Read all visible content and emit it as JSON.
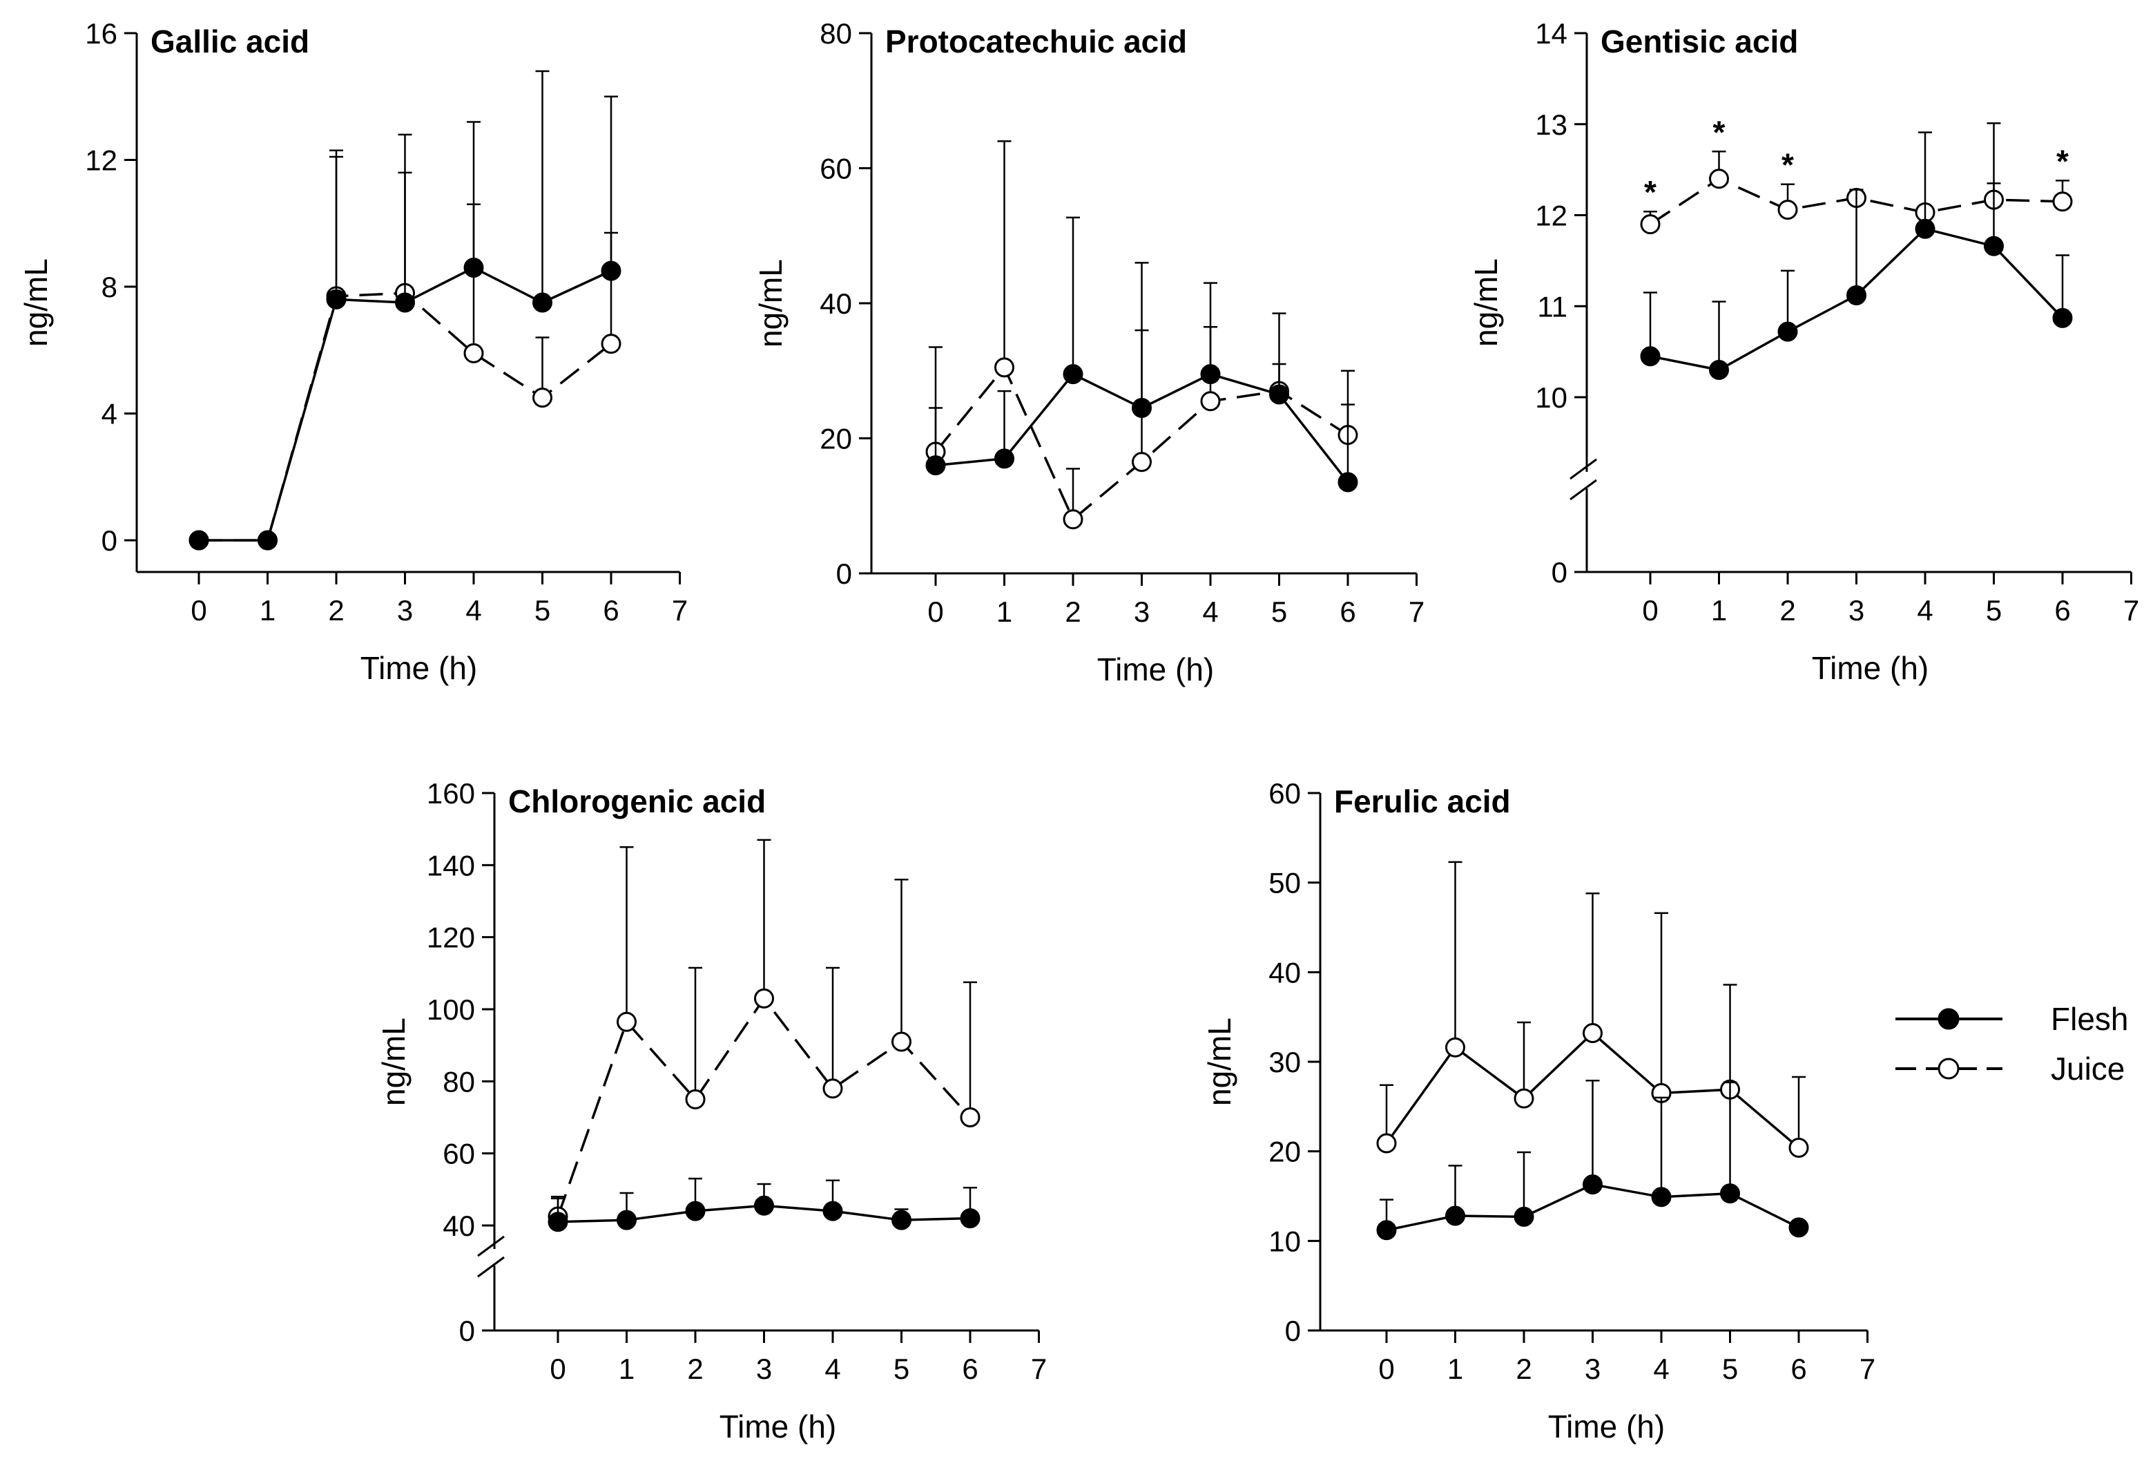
{
  "figure": {
    "legend": [
      {
        "name": "Flesh",
        "marker": "filled-circle",
        "line": "solid"
      },
      {
        "name": "Juice",
        "marker": "open-circle",
        "line": "dashed"
      }
    ],
    "colors": {
      "line": "#000000",
      "open_fill": "#ffffff",
      "filled": "#000000"
    }
  },
  "chart_data": [
    {
      "type": "line",
      "title": "Gallic acid",
      "xlabel": "Time (h)",
      "ylabel": "ng/mL",
      "xlim": [
        -1,
        7
      ],
      "xticks": [
        0,
        1,
        2,
        3,
        4,
        5,
        6,
        7
      ],
      "ylim": [
        -1,
        16
      ],
      "yticks": [
        0,
        4,
        8,
        12,
        16
      ],
      "x": [
        0,
        1,
        2,
        3,
        4,
        5,
        6
      ],
      "series": [
        {
          "name": "Flesh",
          "values": [
            0,
            0,
            7.6,
            7.5,
            8.6,
            7.5,
            8.5
          ],
          "errors": [
            0,
            0,
            4.5,
            4.1,
            2.0,
            7.3,
            1.2
          ]
        },
        {
          "name": "Juice",
          "values": [
            0,
            0,
            7.7,
            7.8,
            5.9,
            4.5,
            6.2
          ],
          "errors": [
            0,
            0,
            4.6,
            5.0,
            7.3,
            1.9,
            7.8
          ]
        }
      ]
    },
    {
      "type": "line",
      "title": "Protocatechuic acid",
      "xlabel": "Time (h)",
      "ylabel": "ng/mL",
      "xlim": [
        -1,
        7
      ],
      "xticks": [
        0,
        1,
        2,
        3,
        4,
        5,
        6,
        7
      ],
      "ylim": [
        0,
        80
      ],
      "yticks": [
        0,
        20,
        40,
        60,
        80
      ],
      "x": [
        0,
        1,
        2,
        3,
        4,
        5,
        6
      ],
      "series": [
        {
          "name": "Flesh",
          "values": [
            16,
            17,
            29.5,
            24.5,
            29.5,
            26.5,
            13.5
          ],
          "errors": [
            8.5,
            10,
            23.2,
            11.5,
            13.5,
            4.5,
            11.5
          ]
        },
        {
          "name": "Juice",
          "values": [
            18,
            30.5,
            8,
            16.5,
            25.5,
            27,
            20.5
          ],
          "errors": [
            15.5,
            33.5,
            7.5,
            29.5,
            11,
            11.5,
            9.5
          ]
        }
      ]
    },
    {
      "type": "line",
      "title": "Gentisic acid",
      "xlabel": "Time (h)",
      "ylabel": "ng/mL",
      "xlim": [
        -1,
        7
      ],
      "xticks": [
        0,
        1,
        2,
        3,
        4,
        5,
        6,
        7
      ],
      "yticks": [
        0,
        10,
        11,
        12,
        13,
        14
      ],
      "axis_break": {
        "lower": 0,
        "upper": 10
      },
      "significance": [
        0,
        1,
        2,
        6
      ],
      "annotation": "*",
      "x": [
        0,
        1,
        2,
        3,
        4,
        5,
        6
      ],
      "series": [
        {
          "name": "Flesh",
          "values": [
            10.45,
            10.3,
            10.72,
            11.12,
            11.85,
            11.66,
            10.87
          ],
          "errors": [
            0.7,
            0.75,
            0.67,
            1.16,
            1.06,
            0.69,
            0.69
          ]
        },
        {
          "name": "Juice",
          "values": [
            11.9,
            12.4,
            12.06,
            12.19,
            12.03,
            12.17,
            12.15
          ],
          "errors": [
            0.14,
            0.3,
            0.28,
            0.09,
            0.0,
            0.84,
            0.23
          ]
        }
      ]
    },
    {
      "type": "line",
      "title": "Chlorogenic acid",
      "xlabel": "Time (h)",
      "ylabel": "ng/mL",
      "xlim": [
        -1,
        7
      ],
      "xticks": [
        0,
        1,
        2,
        3,
        4,
        5,
        6,
        7
      ],
      "yticks": [
        0,
        40,
        60,
        80,
        100,
        120,
        140,
        160
      ],
      "axis_break": {
        "lower": 0,
        "upper": 40
      },
      "x": [
        0,
        1,
        2,
        3,
        4,
        5,
        6
      ],
      "series": [
        {
          "name": "Flesh",
          "values": [
            41,
            41.5,
            44,
            45.5,
            44,
            41.5,
            42
          ],
          "errors": [
            7,
            7.5,
            9,
            6,
            8.5,
            3,
            8.5
          ]
        },
        {
          "name": "Juice",
          "values": [
            42.5,
            96.5,
            75,
            103,
            78,
            91,
            70
          ],
          "errors": [
            5,
            48.5,
            36.5,
            44,
            33.5,
            45,
            37.5
          ]
        }
      ]
    },
    {
      "type": "line",
      "title": "Ferulic acid",
      "xlabel": "Time (h)",
      "ylabel": "ng/mL",
      "xlim": [
        -1,
        7
      ],
      "xticks": [
        0,
        1,
        2,
        3,
        4,
        5,
        6,
        7
      ],
      "ylim": [
        0,
        60
      ],
      "yticks": [
        0,
        10,
        20,
        30,
        40,
        50,
        60
      ],
      "x": [
        0,
        1,
        2,
        3,
        4,
        5,
        6
      ],
      "series": [
        {
          "name": "Flesh",
          "values": [
            11.2,
            12.8,
            12.7,
            16.3,
            14.9,
            15.3,
            11.5
          ],
          "errors": [
            3.4,
            5.6,
            7.2,
            11.6,
            11.1,
            12.4,
            0
          ]
        },
        {
          "name": "Juice",
          "values": [
            20.9,
            31.6,
            25.9,
            33.2,
            26.5,
            26.9,
            20.4
          ],
          "errors": [
            6.5,
            20.7,
            8.5,
            15.6,
            20.1,
            11.7,
            7.9
          ]
        }
      ]
    }
  ]
}
